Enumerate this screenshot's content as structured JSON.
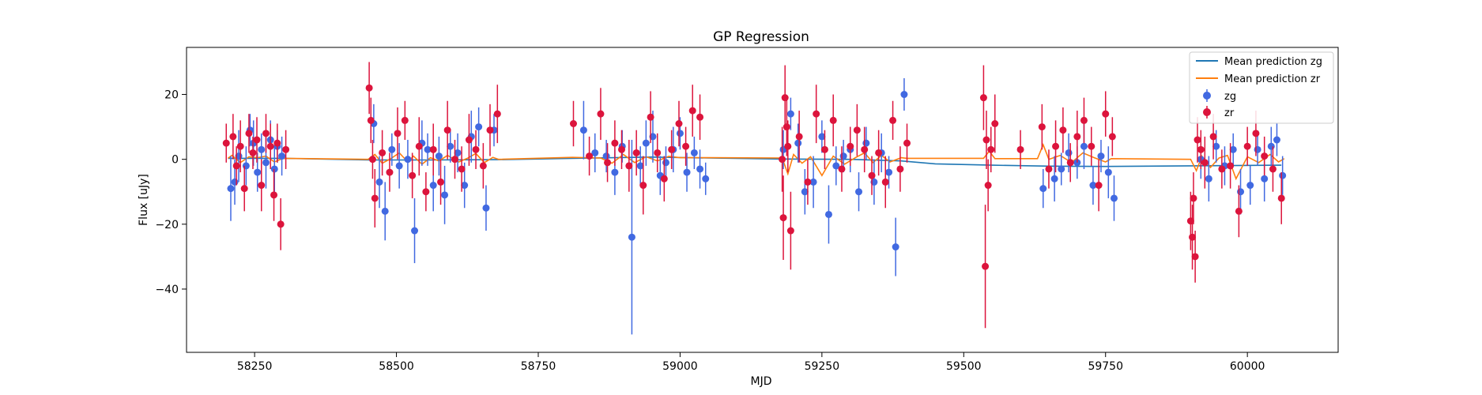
{
  "chart_data": {
    "type": "scatter",
    "title": "GP Regression",
    "xlabel": "MJD",
    "ylabel": "Flux [uJy]",
    "xlim": [
      58130,
      60160
    ],
    "ylim": [
      -59.5,
      34.5
    ],
    "xticks": [
      58250,
      58500,
      58750,
      59000,
      59250,
      59500,
      59750,
      60000
    ],
    "yticks": [
      -40,
      -20,
      0,
      20
    ],
    "grid": false,
    "legend_position": "top-right",
    "colors": {
      "zg_line": "#1f77b4",
      "zr_line": "#ff7f0e",
      "zg_points": "#4169e1",
      "zr_points": "#dc143c"
    },
    "series": [
      {
        "name": "Mean prediction zg",
        "kind": "line",
        "color": "#1f77b4",
        "x": [
          58203,
          58300,
          58450,
          58560,
          58680,
          58810,
          58950,
          59050,
          59180,
          59300,
          59390,
          59450,
          59550,
          59650,
          59750,
          59900,
          60060
        ],
        "y": [
          0.3,
          0.3,
          -0.2,
          -0.2,
          -0.1,
          0.3,
          0.7,
          0.4,
          0.1,
          0.0,
          -0.5,
          -1.4,
          -1.8,
          -2.1,
          -2.2,
          -2.0,
          -1.8
        ]
      },
      {
        "name": "Mean prediction zr",
        "kind": "line",
        "color": "#ff7f0e",
        "x": [
          58203,
          58210,
          58225,
          58240,
          58255,
          58270,
          58285,
          58300,
          58450,
          58462,
          58475,
          58490,
          58505,
          58520,
          58530,
          58545,
          58560,
          58575,
          58590,
          58610,
          58625,
          58640,
          58655,
          58670,
          58680,
          58810,
          58860,
          58880,
          58900,
          58920,
          58940,
          58960,
          58980,
          59000,
          59050,
          59180,
          59190,
          59200,
          59215,
          59230,
          59250,
          59270,
          59290,
          59310,
          59325,
          59340,
          59355,
          59370,
          59390,
          59400,
          59535,
          59545,
          59555,
          59630,
          59640,
          59650,
          59670,
          59690,
          59710,
          59730,
          59750,
          59760,
          59900,
          59910,
          59920,
          59935,
          59950,
          59965,
          59980,
          60000,
          60020,
          60040,
          60055,
          60065
        ],
        "y": [
          0.3,
          1.2,
          -1.0,
          0.8,
          0.5,
          1.0,
          -0.8,
          0.3,
          0.0,
          1.5,
          -1.2,
          0.2,
          2.0,
          -0.8,
          1.0,
          -1.5,
          0.5,
          -0.5,
          1.2,
          -0.8,
          0.3,
          1.8,
          -1.0,
          0.6,
          0.0,
          0.6,
          0.4,
          -1.2,
          1.5,
          -1.0,
          0.8,
          -0.5,
          0.9,
          0.5,
          0.5,
          0.4,
          -4.5,
          1.5,
          -1.2,
          0.8,
          -5.0,
          1.0,
          -1.5,
          0.6,
          2.0,
          -1.0,
          1.2,
          -0.8,
          0.5,
          0.3,
          0.3,
          2.5,
          0.2,
          0.2,
          4.5,
          0.0,
          1.2,
          -1.0,
          2.0,
          0.5,
          -0.8,
          0.2,
          0.0,
          -3.5,
          1.0,
          -2.5,
          0.4,
          1.2,
          -6.0,
          0.8,
          -1.0,
          1.5,
          -0.8,
          0.2
        ]
      },
      {
        "name": "zg",
        "kind": "errorbar",
        "color": "#4169e1",
        "x": [
          58208,
          58215,
          58222,
          58235,
          58242,
          58248,
          58255,
          58262,
          58270,
          58278,
          58285,
          58290,
          58298,
          58460,
          58470,
          58480,
          58492,
          58505,
          58520,
          58532,
          58545,
          58555,
          58565,
          58575,
          58585,
          58595,
          58608,
          58620,
          58632,
          58645,
          58658,
          58672,
          58830,
          58850,
          58870,
          58885,
          58898,
          58915,
          58930,
          58940,
          58952,
          58965,
          58975,
          58988,
          59000,
          59012,
          59025,
          59035,
          59045,
          59182,
          59195,
          59208,
          59220,
          59235,
          59250,
          59262,
          59275,
          59288,
          59300,
          59315,
          59328,
          59342,
          59355,
          59368,
          59380,
          59395,
          59640,
          59660,
          59672,
          59685,
          59700,
          59712,
          59728,
          59742,
          59755,
          59765,
          59918,
          59932,
          59945,
          59960,
          59975,
          59988,
          60005,
          60018,
          60030,
          60042,
          60052,
          60062
        ],
        "y": [
          -9,
          -7,
          1,
          -2,
          9,
          5,
          -4,
          3,
          -1,
          6,
          -3,
          4,
          1,
          11,
          -7,
          -16,
          3,
          -2,
          0,
          -22,
          5,
          3,
          -8,
          1,
          -11,
          4,
          2,
          -8,
          7,
          10,
          -15,
          9,
          9,
          2,
          1,
          -4,
          4,
          -24,
          -2,
          5,
          7,
          -5,
          -1,
          3,
          8,
          -4,
          2,
          -3,
          -6,
          3,
          14,
          5,
          -10,
          -7,
          7,
          -17,
          -2,
          1,
          3,
          -10,
          5,
          -7,
          2,
          -4,
          -27,
          20,
          -9,
          -6,
          -3,
          2,
          -1,
          4,
          -8,
          1,
          -4,
          -12,
          0,
          -6,
          4,
          -2,
          3,
          -10,
          -8,
          3,
          -6,
          4,
          6,
          -5
        ],
        "yerr": [
          10,
          7,
          8,
          6,
          5,
          7,
          6,
          5,
          8,
          6,
          7,
          5,
          6,
          6,
          8,
          9,
          5,
          7,
          6,
          10,
          7,
          5,
          8,
          6,
          9,
          5,
          6,
          7,
          8,
          6,
          7,
          5,
          9,
          6,
          5,
          7,
          5,
          30,
          6,
          7,
          8,
          6,
          5,
          7,
          5,
          6,
          5,
          6,
          5,
          6,
          5,
          6,
          7,
          8,
          5,
          9,
          6,
          5,
          7,
          6,
          5,
          7,
          6,
          5,
          9,
          5,
          6,
          7,
          5,
          6,
          5,
          7,
          6,
          5,
          8,
          7,
          6,
          7,
          5,
          6,
          5,
          7,
          6,
          5,
          7,
          6,
          5,
          6
        ]
      },
      {
        "name": "zr",
        "kind": "errorbar",
        "color": "#dc143c",
        "x": [
          58200,
          58212,
          58218,
          58225,
          58232,
          58240,
          58247,
          58254,
          58262,
          58270,
          58278,
          58284,
          58290,
          58296,
          58305,
          58452,
          58455,
          58458,
          58462,
          58475,
          58488,
          58502,
          58515,
          58528,
          58540,
          58552,
          58565,
          58578,
          58590,
          58603,
          58615,
          58628,
          58640,
          58653,
          58665,
          58678,
          58812,
          58840,
          58860,
          58872,
          58885,
          58897,
          58910,
          58923,
          58935,
          58948,
          58960,
          58972,
          58985,
          58998,
          59010,
          59022,
          59035,
          59180,
          59182,
          59185,
          59188,
          59190,
          59195,
          59210,
          59225,
          59240,
          59255,
          59270,
          59285,
          59300,
          59312,
          59325,
          59338,
          59350,
          59362,
          59375,
          59388,
          59400,
          59535,
          59538,
          59540,
          59543,
          59548,
          59555,
          59600,
          59638,
          59650,
          59662,
          59675,
          59688,
          59700,
          59712,
          59725,
          59738,
          59750,
          59762,
          59900,
          59903,
          59905,
          59908,
          59912,
          59918,
          59925,
          59940,
          59955,
          59970,
          59985,
          60000,
          60015,
          60030,
          60045,
          60060
        ],
        "y": [
          5,
          7,
          -2,
          4,
          -9,
          8,
          2,
          6,
          -8,
          8,
          4,
          -11,
          5,
          -20,
          3,
          22,
          12,
          0,
          -12,
          2,
          -4,
          8,
          12,
          -5,
          4,
          -10,
          3,
          -7,
          9,
          0,
          -3,
          6,
          3,
          -2,
          9,
          14,
          11,
          1,
          14,
          -1,
          5,
          3,
          -2,
          2,
          -8,
          13,
          2,
          -6,
          3,
          11,
          4,
          15,
          13,
          0,
          -18,
          19,
          10,
          4,
          -22,
          7,
          -7,
          14,
          3,
          12,
          -3,
          4,
          9,
          3,
          -5,
          2,
          -7,
          12,
          -3,
          5,
          19,
          -33,
          6,
          -8,
          3,
          11,
          3,
          10,
          -3,
          4,
          9,
          -1,
          7,
          12,
          4,
          -8,
          14,
          7,
          -19,
          -24,
          -12,
          -30,
          6,
          3,
          -1,
          7,
          -3,
          -2,
          -16,
          4,
          8,
          1,
          -3,
          -12
        ],
        "yerr": [
          6,
          7,
          6,
          8,
          7,
          6,
          5,
          7,
          8,
          6,
          7,
          8,
          6,
          8,
          6,
          8,
          7,
          6,
          9,
          7,
          6,
          8,
          6,
          7,
          9,
          6,
          8,
          7,
          9,
          6,
          7,
          8,
          6,
          7,
          8,
          9,
          7,
          6,
          8,
          6,
          7,
          6,
          8,
          7,
          9,
          8,
          6,
          7,
          6,
          7,
          6,
          8,
          7,
          10,
          13,
          10,
          9,
          8,
          12,
          8,
          7,
          9,
          6,
          8,
          7,
          6,
          8,
          7,
          6,
          7,
          8,
          6,
          7,
          6,
          10,
          19,
          9,
          8,
          7,
          9,
          6,
          7,
          6,
          8,
          7,
          6,
          8,
          7,
          6,
          8,
          7,
          6,
          9,
          10,
          8,
          8,
          7,
          6,
          8,
          7,
          6,
          7,
          8,
          6,
          7,
          6,
          7,
          8
        ]
      }
    ]
  }
}
